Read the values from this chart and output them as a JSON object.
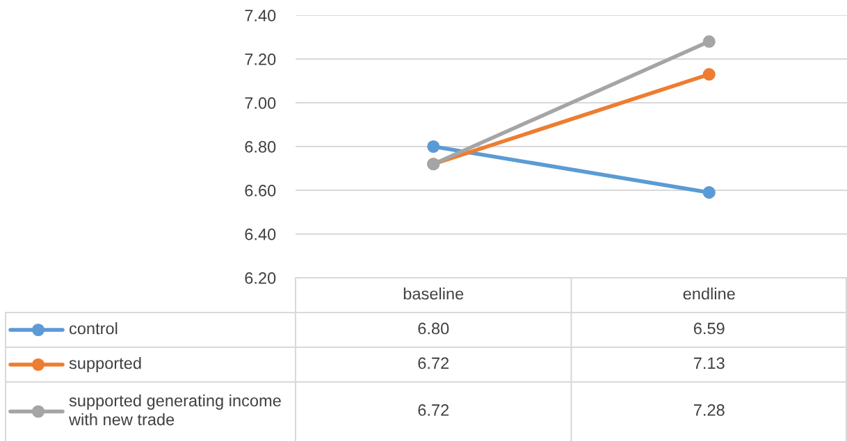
{
  "chart_data": {
    "type": "line",
    "categories": [
      "baseline",
      "endline"
    ],
    "series": [
      {
        "name": "control",
        "color": "#5b9bd5",
        "values": [
          6.8,
          6.59
        ],
        "value_labels": [
          "6.80",
          "6.59"
        ]
      },
      {
        "name": "supported",
        "color": "#ed7d31",
        "values": [
          6.72,
          7.13
        ],
        "value_labels": [
          "6.72",
          "7.13"
        ]
      },
      {
        "name": "supported generating income with new trade",
        "color": "#a5a5a5",
        "values": [
          6.72,
          7.28
        ],
        "value_labels": [
          "6.72",
          "7.28"
        ]
      }
    ],
    "ylim": [
      6.2,
      7.4
    ],
    "yticks": [
      {
        "value": 6.2,
        "label": "6.20"
      },
      {
        "value": 6.4,
        "label": "6.40"
      },
      {
        "value": 6.6,
        "label": "6.60"
      },
      {
        "value": 6.8,
        "label": "6.80"
      },
      {
        "value": 7.0,
        "label": "7.00"
      },
      {
        "value": 7.2,
        "label": "7.20"
      },
      {
        "value": 7.4,
        "label": "7.40"
      }
    ],
    "grid": "y",
    "legend": "bottom",
    "marker": "circle",
    "line_style": "solid"
  }
}
